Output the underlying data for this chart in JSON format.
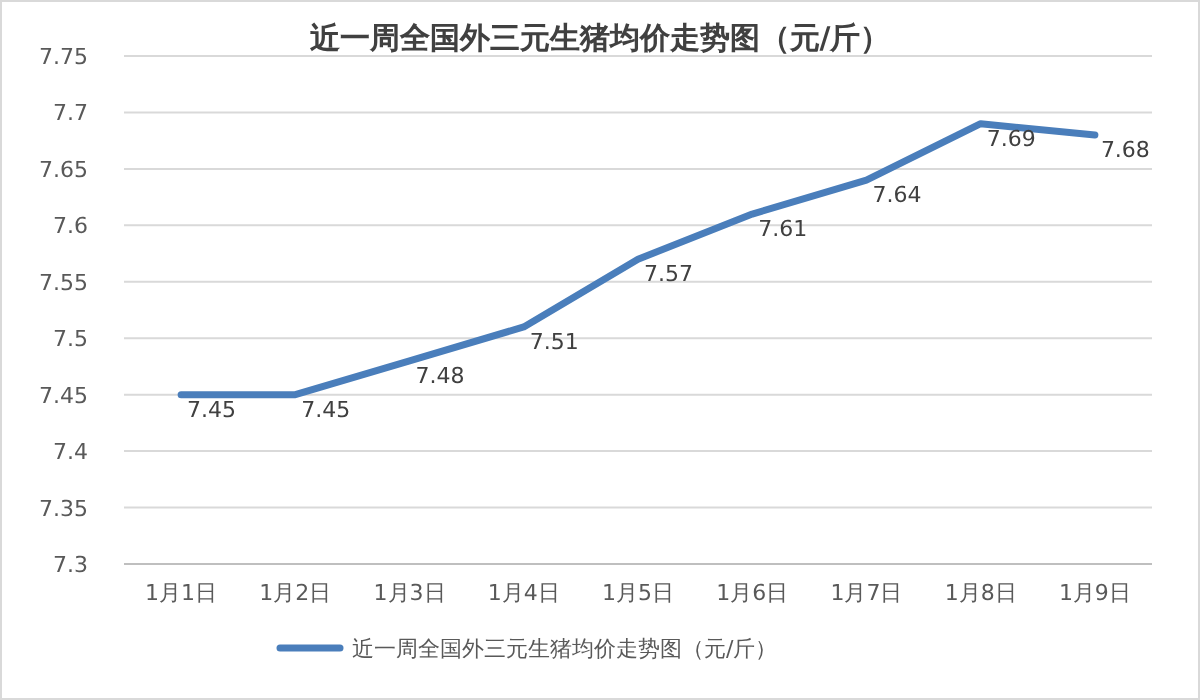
{
  "chart_data": {
    "type": "line",
    "title": "近一周全国外三元生猪均价走势图（元/斤）",
    "categories": [
      "1月1日",
      "1月2日",
      "1月3日",
      "1月4日",
      "1月5日",
      "1月6日",
      "1月7日",
      "1月8日",
      "1月9日"
    ],
    "series": [
      {
        "name": "近一周全国外三元生猪均价走势图（元/斤）",
        "color": "#4a7ebb",
        "values": [
          7.45,
          7.45,
          7.48,
          7.51,
          7.57,
          7.61,
          7.64,
          7.69,
          7.68
        ]
      }
    ],
    "ylim": [
      7.3,
      7.75
    ],
    "yticks": [
      7.3,
      7.35,
      7.4,
      7.45,
      7.5,
      7.55,
      7.6,
      7.65,
      7.7,
      7.75
    ],
    "grid": "y",
    "legend": "bottom",
    "data_labels": true,
    "marker": "none",
    "line_style": "solid"
  }
}
